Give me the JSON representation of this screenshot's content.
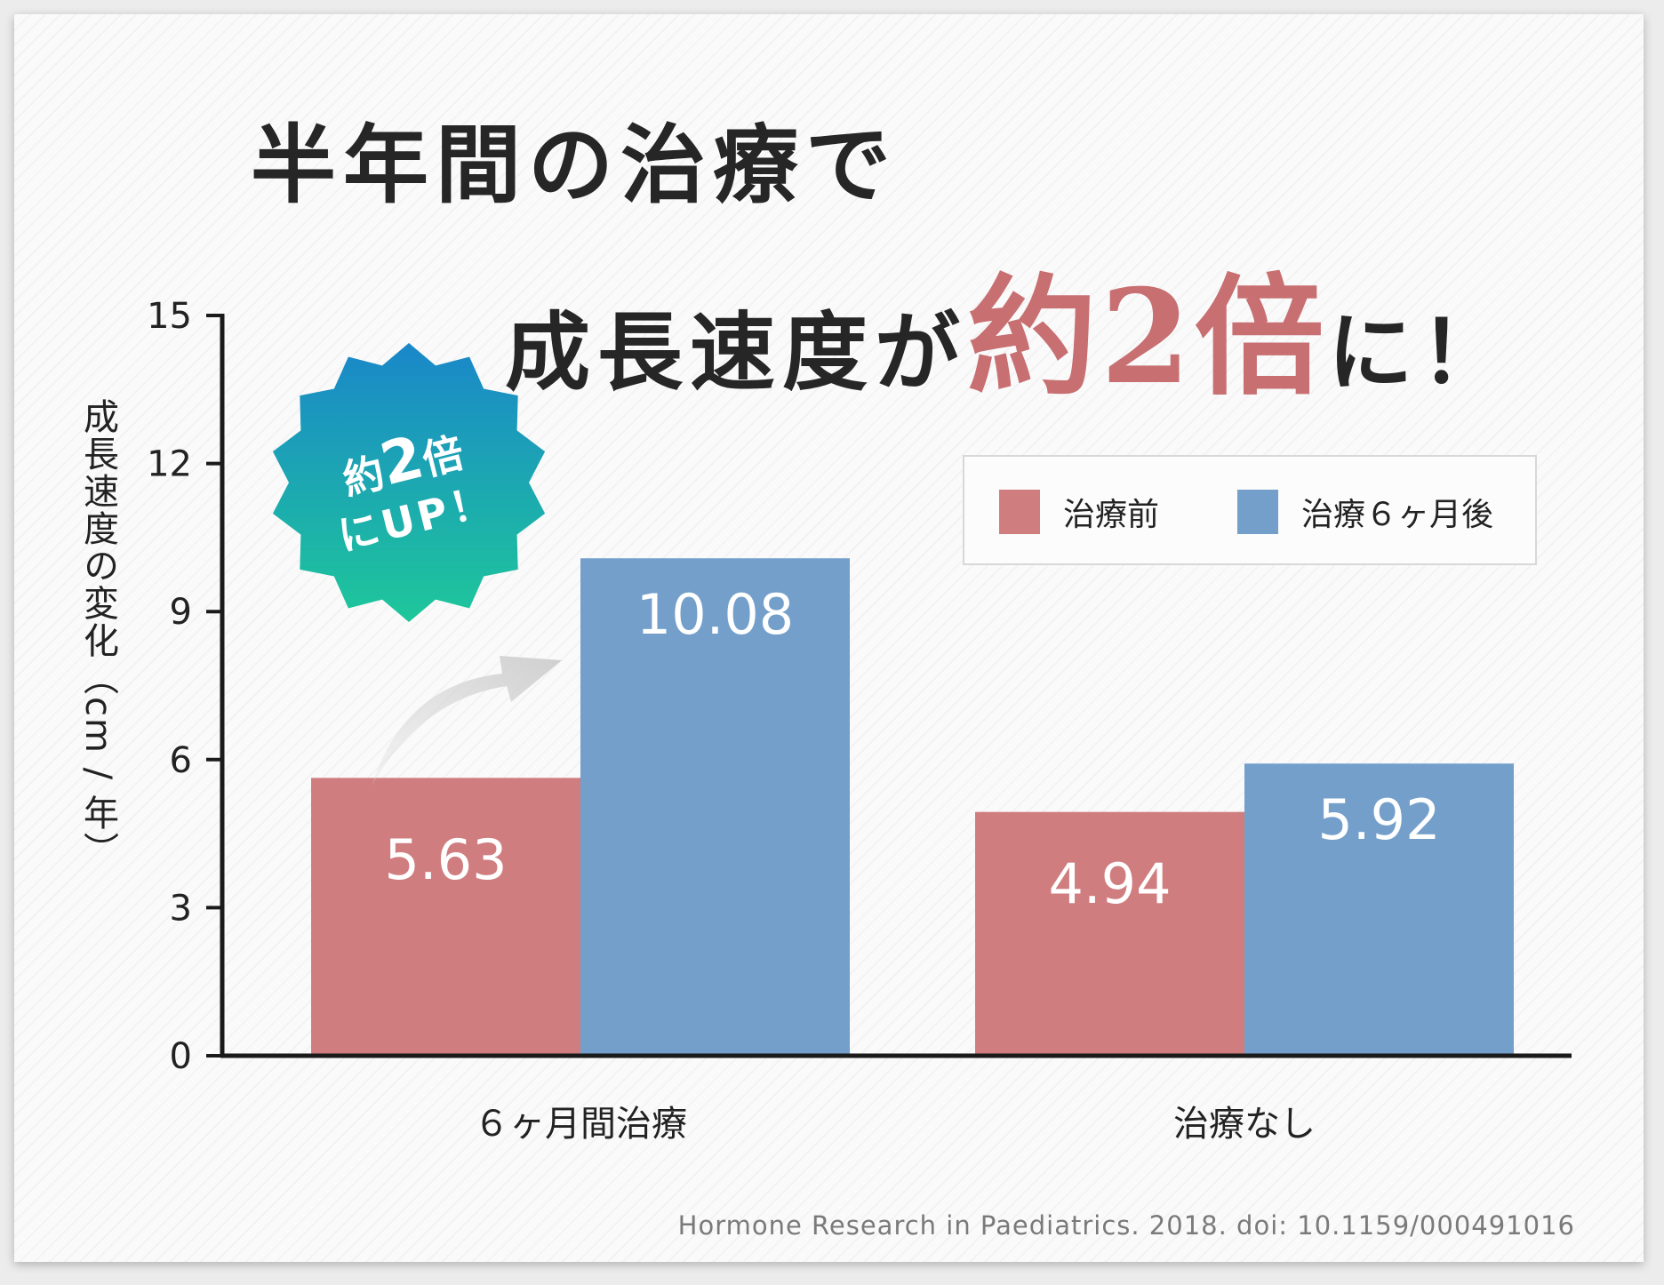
{
  "headline": {
    "line1": "半年間の治療で",
    "line2_pre": "成長速度が",
    "line2_emph": "約2倍",
    "line2_post": "に！"
  },
  "badge": {
    "line1_a": "約",
    "line1_b": "2",
    "line1_c": "倍",
    "line2": "にUP！"
  },
  "y_axis_label": "成長速度の変化（cm / 年）",
  "legend": [
    {
      "label": "治療前",
      "color": "#d07d7f"
    },
    {
      "label": "治療６ヶ月後",
      "color": "#739fca"
    }
  ],
  "source": "Hormone Research in Paediatrics. 2018. doi: 10.1159/000491016",
  "colors": {
    "before": "#d07d7f",
    "after": "#739fca",
    "emphasis": "#c86f72",
    "badge_top": "#1a87c9",
    "badge_bottom": "#1ec79a"
  },
  "chart_data": {
    "type": "bar",
    "categories": [
      "６ヶ月間治療",
      "治療なし"
    ],
    "series": [
      {
        "name": "治療前",
        "values": [
          5.63,
          4.94
        ],
        "labels": [
          "5.63",
          "4.94"
        ]
      },
      {
        "name": "治療６ヶ月後",
        "values": [
          10.08,
          5.92
        ],
        "labels": [
          "10.08",
          "5.92"
        ]
      }
    ],
    "ylabel": "成長速度の変化（cm / 年）",
    "ylim": [
      0,
      15
    ],
    "yticks": [
      0,
      3,
      6,
      9,
      12,
      15
    ],
    "ytick_labels": [
      "0",
      "3",
      "6",
      "9",
      "12",
      "15"
    ],
    "grid": false,
    "legend_position": "top-right"
  }
}
